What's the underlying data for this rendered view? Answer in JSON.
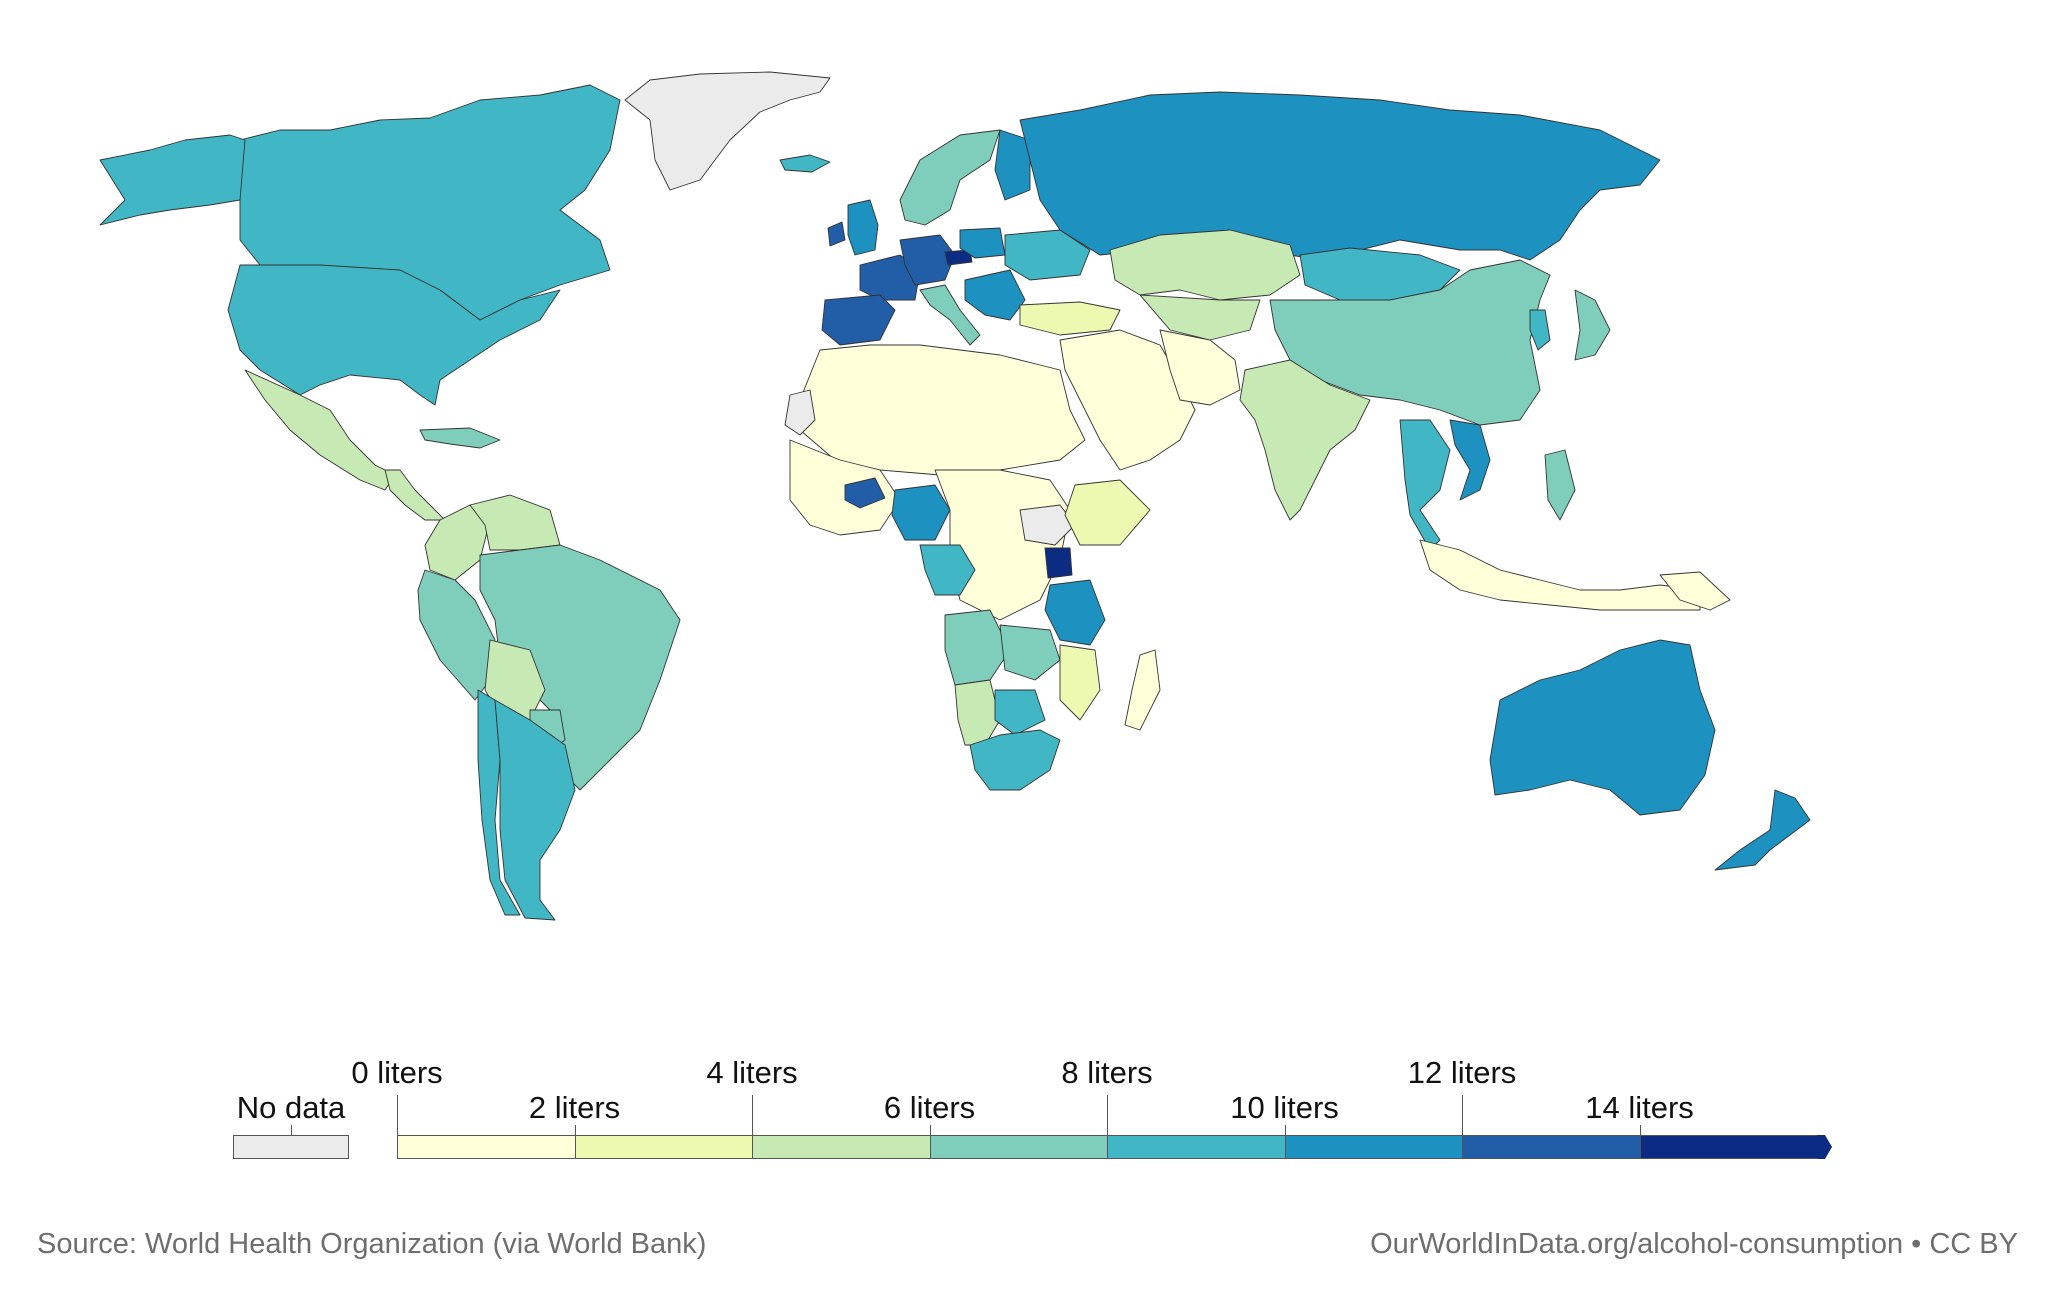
{
  "source_text": "Source: World Health Organization (via World Bank)",
  "url_text": "OurWorldInData.org/alcohol-consumption • CC BY",
  "legend": {
    "no_data_label": "No data",
    "no_data_color": "#ebebeb",
    "bins": [
      {
        "from": 0,
        "to": 2,
        "color": "#ffffd9"
      },
      {
        "from": 2,
        "to": 4,
        "color": "#edf8b1"
      },
      {
        "from": 4,
        "to": 6,
        "color": "#c7e9b4"
      },
      {
        "from": 6,
        "to": 8,
        "color": "#7fcdbb"
      },
      {
        "from": 8,
        "to": 10,
        "color": "#41b6c4"
      },
      {
        "from": 10,
        "to": 12,
        "color": "#1d91c0"
      },
      {
        "from": 12,
        "to": 14,
        "color": "#225ea8"
      },
      {
        "from": 14,
        "to": 16,
        "color": "#0c2c84"
      }
    ],
    "tick_labels_top": [
      "0 liters",
      "4 liters",
      "8 liters",
      "12 liters"
    ],
    "tick_labels_bottom": [
      "2 liters",
      "6 liters",
      "10 liters",
      "14 liters"
    ]
  },
  "map_regions": [
    {
      "name": "Greenland",
      "color": "#ebebeb"
    },
    {
      "name": "Canada",
      "color": "#41b6c4"
    },
    {
      "name": "United States",
      "color": "#41b6c4"
    },
    {
      "name": "Alaska",
      "color": "#41b6c4"
    },
    {
      "name": "Mexico",
      "color": "#c7e9b4"
    },
    {
      "name": "Central America",
      "color": "#c7e9b4"
    },
    {
      "name": "Caribbean",
      "color": "#7fcdbb"
    },
    {
      "name": "Colombia",
      "color": "#c7e9b4"
    },
    {
      "name": "Venezuela",
      "color": "#c7e9b4"
    },
    {
      "name": "Peru",
      "color": "#7fcdbb"
    },
    {
      "name": "Brazil",
      "color": "#7fcdbb"
    },
    {
      "name": "Bolivia",
      "color": "#c7e9b4"
    },
    {
      "name": "Paraguay",
      "color": "#7fcdbb"
    },
    {
      "name": "Chile",
      "color": "#41b6c4"
    },
    {
      "name": "Argentina",
      "color": "#41b6c4"
    },
    {
      "name": "Iceland",
      "color": "#41b6c4"
    },
    {
      "name": "Ireland",
      "color": "#225ea8"
    },
    {
      "name": "United Kingdom",
      "color": "#1d91c0"
    },
    {
      "name": "France",
      "color": "#225ea8"
    },
    {
      "name": "Iberia",
      "color": "#225ea8"
    },
    {
      "name": "Germany",
      "color": "#225ea8"
    },
    {
      "name": "Czechia",
      "color": "#0c2c84"
    },
    {
      "name": "Poland",
      "color": "#1d91c0"
    },
    {
      "name": "Scandinavia",
      "color": "#7fcdbb"
    },
    {
      "name": "Finland",
      "color": "#1d91c0"
    },
    {
      "name": "Italy",
      "color": "#7fcdbb"
    },
    {
      "name": "Balkans",
      "color": "#1d91c0"
    },
    {
      "name": "Ukraine",
      "color": "#41b6c4"
    },
    {
      "name": "Russia",
      "color": "#1d91c0"
    },
    {
      "name": "Turkey",
      "color": "#edf8b1"
    },
    {
      "name": "Kazakhstan",
      "color": "#c7e9b4"
    },
    {
      "name": "Mongolia",
      "color": "#41b6c4"
    },
    {
      "name": "China",
      "color": "#7fcdbb"
    },
    {
      "name": "Korea",
      "color": "#41b6c4"
    },
    {
      "name": "Japan",
      "color": "#7fcdbb"
    },
    {
      "name": "India",
      "color": "#c7e9b4"
    },
    {
      "name": "Middle East",
      "color": "#ffffd9"
    },
    {
      "name": "Iran",
      "color": "#ffffd9"
    },
    {
      "name": "Central Asia",
      "color": "#c7e9b4"
    },
    {
      "name": "Southeast Asia",
      "color": "#41b6c4"
    },
    {
      "name": "Vietnam",
      "color": "#1d91c0"
    },
    {
      "name": "Philippines",
      "color": "#7fcdbb"
    },
    {
      "name": "Indonesia",
      "color": "#ffffd9"
    },
    {
      "name": "Papua New Guinea",
      "color": "#ffffd9"
    },
    {
      "name": "Australia",
      "color": "#1d91c0"
    },
    {
      "name": "New Zealand",
      "color": "#1d91c0"
    },
    {
      "name": "North Africa",
      "color": "#ffffd9"
    },
    {
      "name": "Western Sahara",
      "color": "#ebebeb"
    },
    {
      "name": "West Africa",
      "color": "#ffffd9"
    },
    {
      "name": "Burkina Faso",
      "color": "#225ea8"
    },
    {
      "name": "Nigeria",
      "color": "#1d91c0"
    },
    {
      "name": "Central Africa",
      "color": "#ffffd9"
    },
    {
      "name": "Gabon/Congo",
      "color": "#41b6c4"
    },
    {
      "name": "South Sudan",
      "color": "#ebebeb"
    },
    {
      "name": "Ethiopia",
      "color": "#edf8b1"
    },
    {
      "name": "Uganda",
      "color": "#0c2c84"
    },
    {
      "name": "Tanzania",
      "color": "#1d91c0"
    },
    {
      "name": "Angola",
      "color": "#7fcdbb"
    },
    {
      "name": "Zambia",
      "color": "#7fcdbb"
    },
    {
      "name": "Mozambique",
      "color": "#edf8b1"
    },
    {
      "name": "Namibia",
      "color": "#c7e9b4"
    },
    {
      "name": "Botswana",
      "color": "#41b6c4"
    },
    {
      "name": "South Africa",
      "color": "#41b6c4"
    },
    {
      "name": "Madagascar",
      "color": "#ffffd9"
    }
  ]
}
